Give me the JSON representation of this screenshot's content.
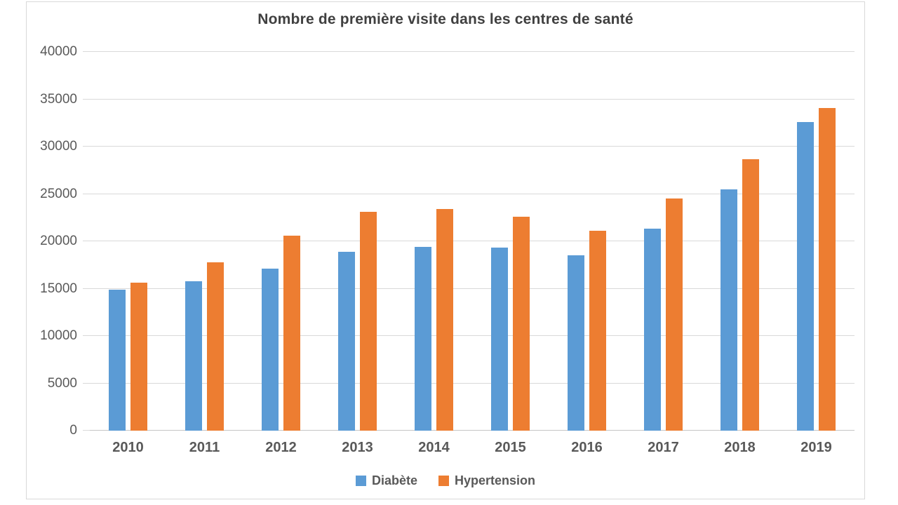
{
  "chart_data": {
    "type": "bar",
    "title": "Nombre de première visite dans les centres de santé",
    "categories": [
      "2010",
      "2011",
      "2012",
      "2013",
      "2014",
      "2015",
      "2016",
      "2017",
      "2018",
      "2019"
    ],
    "series": [
      {
        "name": "Diabète",
        "color": "#5B9BD5",
        "values": [
          14900,
          15800,
          17100,
          18900,
          19400,
          19300,
          18500,
          21300,
          25500,
          32600
        ]
      },
      {
        "name": "Hypertension",
        "color": "#ED7D31",
        "values": [
          15600,
          17800,
          20600,
          23100,
          23400,
          22600,
          21100,
          24500,
          28700,
          34100
        ]
      }
    ],
    "xlabel": "",
    "ylabel": "",
    "ylim": [
      0,
      40000
    ],
    "ytick_step": 5000,
    "ytick_labels": [
      "0",
      "5000",
      "10000",
      "15000",
      "20000",
      "25000",
      "30000",
      "35000",
      "40000"
    ],
    "grid": true,
    "legend_position": "bottom"
  },
  "colors": {
    "bar_blue": "#5B9BD5",
    "bar_orange": "#ED7D31",
    "gridline": "#d9d9d9",
    "axis_text": "#595959",
    "title_text": "#404040",
    "background": "#ffffff"
  }
}
